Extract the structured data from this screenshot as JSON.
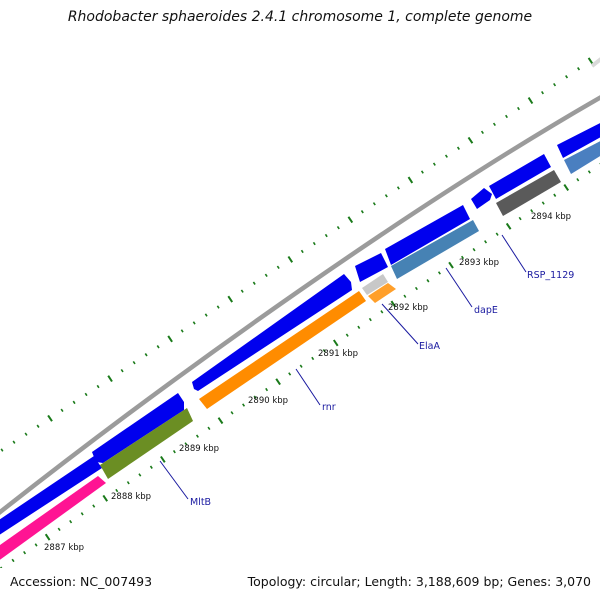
{
  "title": "Rhodobacter sphaeroides 2.4.1 chromosome 1, complete genome",
  "accession": "Accession: NC_007493",
  "summary": "Topology: circular; Length: 3,188,609 bp; Genes: 3,070",
  "colors": {
    "backbone": "#8a8a8a",
    "forward_strand": "#0000ee",
    "ticks": "#1a7a1a",
    "label_line": "#1a1aa0"
  },
  "kbp_labels": [
    "2887 kbp",
    "2888 kbp",
    "2889 kbp",
    "2890 kbp",
    "2891 kbp",
    "2892 kbp",
    "2893 kbp",
    "2894 kbp"
  ],
  "genes": [
    {
      "label": "MltB",
      "color": "#6b8e23"
    },
    {
      "label": "rnr",
      "color": "#ff8c00"
    },
    {
      "label": "ElaA",
      "color": "#ff9f2a"
    },
    {
      "label": "dapE",
      "color": "#4682b4"
    },
    {
      "label": "RSP_1129",
      "color": "#5a5a5a"
    }
  ],
  "unlabeled_genes": [
    {
      "color": "#ff1493"
    },
    {
      "color": "#c8c8c8"
    },
    {
      "color": "#4a7fc0"
    }
  ]
}
